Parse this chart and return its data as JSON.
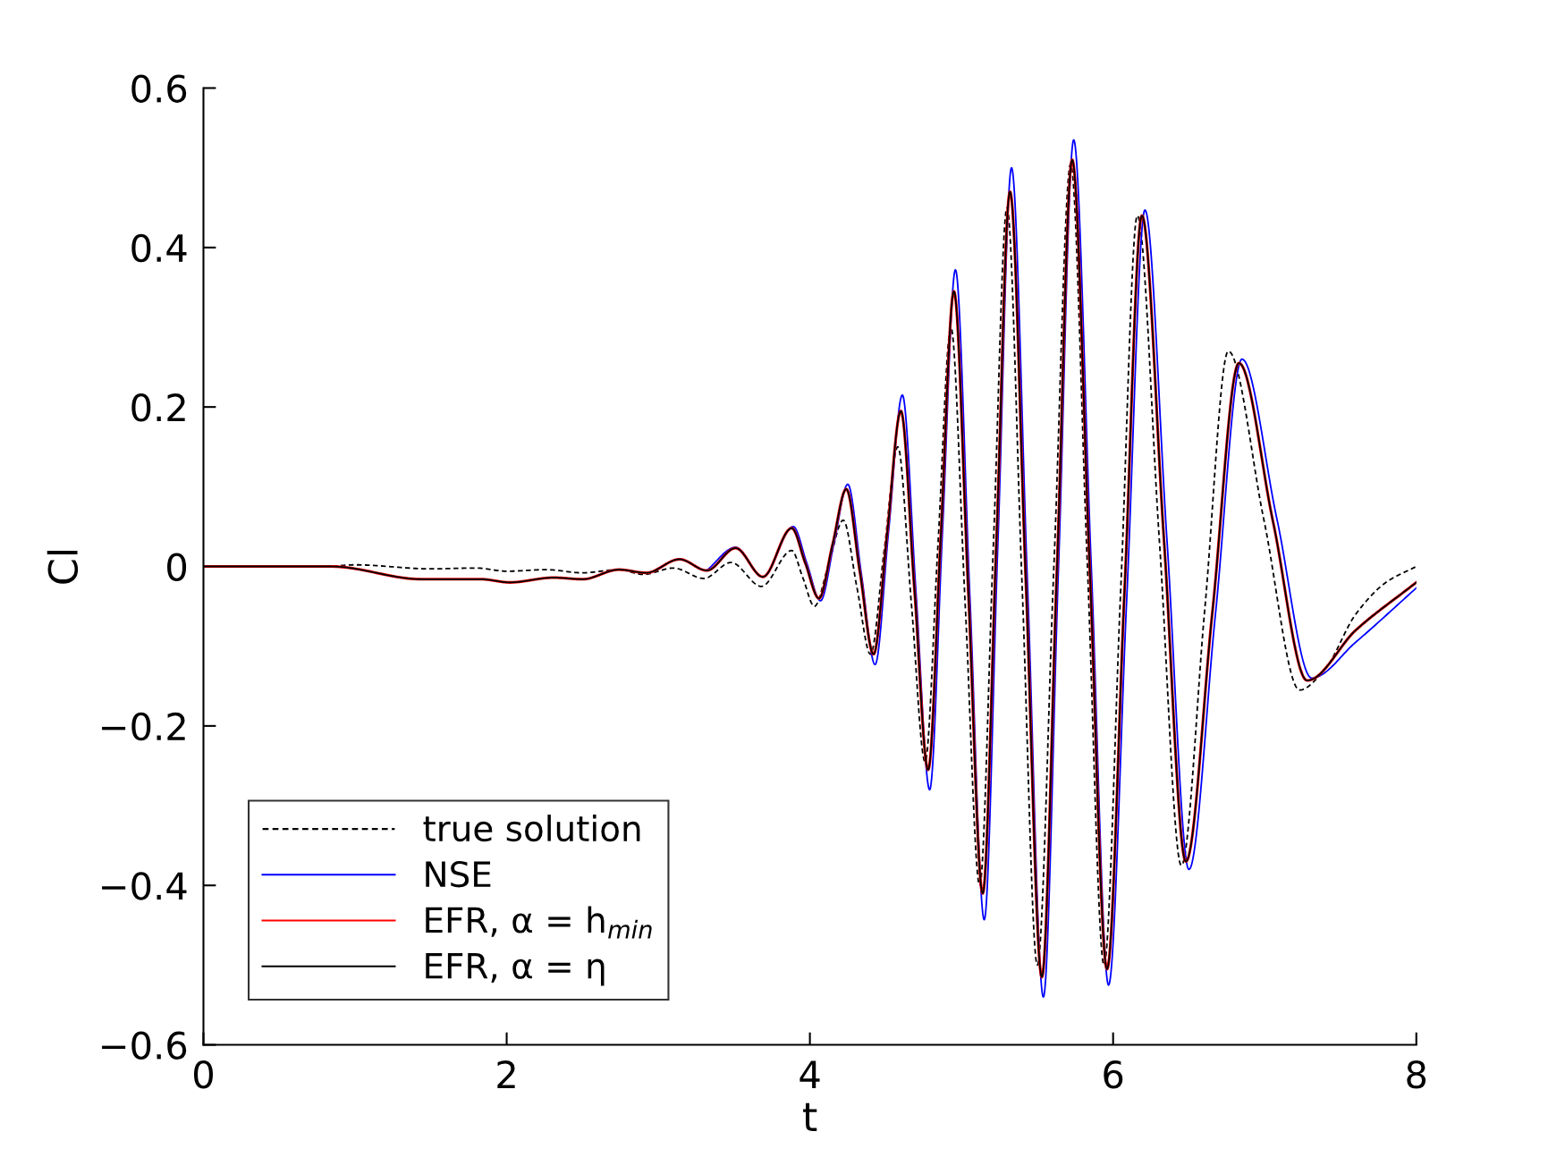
{
  "chart_data": {
    "type": "line",
    "xlabel": "t",
    "ylabel": "Cl",
    "xlim": [
      0,
      8
    ],
    "xticks": [
      0,
      2,
      4,
      6,
      8
    ],
    "ylim": [
      -0.6,
      0.6
    ],
    "yticks": [
      -0.6,
      -0.4,
      -0.2,
      0,
      0.2,
      0.4,
      0.6
    ],
    "grid": false,
    "legend": "bottom left",
    "marker": "none",
    "series": [
      {
        "name": "true solution",
        "color": "#000000",
        "line_style": "dashed",
        "x": [
          0,
          0.8,
          1.0,
          1.5,
          1.8,
          2.0,
          2.26,
          2.5,
          2.74,
          2.9,
          3.1,
          3.3,
          3.48,
          3.68,
          3.88,
          3.955,
          4.03,
          4.125,
          4.22,
          4.31,
          4.4,
          4.49,
          4.58,
          4.67,
          4.76,
          4.845,
          4.93,
          5.025,
          5.12,
          5.21,
          5.3,
          5.4,
          5.5,
          5.61,
          5.72,
          5.83,
          5.94,
          6.05,
          6.16,
          6.305,
          6.45,
          6.605,
          6.76,
          6.995,
          7.23,
          7.4,
          7.6,
          7.8,
          8
        ],
        "values": [
          0,
          0,
          0.002,
          -0.003,
          -0.002,
          -0.006,
          -0.004,
          -0.008,
          -0.004,
          -0.01,
          -0.002,
          -0.015,
          0.005,
          -0.025,
          0.02,
          -0.015,
          -0.05,
          0.004,
          0.058,
          -0.026,
          -0.11,
          0.02,
          0.15,
          -0.048,
          -0.245,
          0.028,
          0.3,
          -0.05,
          -0.4,
          0.025,
          0.45,
          -0.025,
          -0.5,
          0.003,
          0.505,
          0.003,
          -0.5,
          -0.03,
          0.44,
          0.033,
          -0.375,
          -0.053,
          0.27,
          0.058,
          -0.155,
          -0.128,
          -0.06,
          -0.02,
          0
        ]
      },
      {
        "name": "NSE",
        "color": "#0000ff",
        "line_style": "solid",
        "x": [
          3.32,
          3.51,
          3.69,
          3.89,
          3.98,
          4.07,
          4.16,
          4.25,
          4.34,
          4.43,
          4.52,
          4.61,
          4.7,
          4.79,
          4.875,
          4.96,
          5.055,
          5.15,
          5.24,
          5.33,
          5.435,
          5.54,
          5.64,
          5.74,
          5.855,
          5.97,
          6.09,
          6.21,
          6.355,
          6.5,
          6.675,
          6.85,
          7.08,
          7.31,
          7.6,
          8
        ],
        "values": [
          -0.005,
          0.024,
          -0.013,
          0.05,
          0.004,
          -0.043,
          0.03,
          0.103,
          -0.01,
          -0.123,
          0.046,
          0.215,
          -0.033,
          -0.28,
          0.046,
          0.372,
          -0.036,
          -0.443,
          0.029,
          0.5,
          -0.02,
          -0.54,
          0.0,
          0.535,
          0.005,
          -0.525,
          -0.04,
          0.447,
          0.034,
          -0.38,
          -0.06,
          0.26,
          0.06,
          -0.14,
          -0.095,
          -0.027
        ]
      },
      {
        "name": "EFR, α = h$_{min}$",
        "color": "#ff0000",
        "line_style": "solid",
        "x": [
          0,
          0.84,
          1.44,
          1.83,
          2.02,
          2.31,
          2.5,
          2.74,
          2.92,
          3.14,
          3.32,
          3.51,
          3.69,
          3.88,
          3.97,
          4.06,
          4.15,
          4.24,
          4.33,
          4.42,
          4.51,
          4.6,
          4.69,
          4.78,
          4.865,
          4.95,
          5.045,
          5.14,
          5.23,
          5.32,
          5.425,
          5.53,
          5.63,
          5.73,
          5.845,
          5.96,
          6.075,
          6.19,
          6.335,
          6.48,
          6.655,
          6.83,
          7.055,
          7.28,
          7.6,
          8
        ],
        "values": [
          0,
          0,
          -0.016,
          -0.016,
          -0.02,
          -0.014,
          -0.016,
          -0.004,
          -0.008,
          0.009,
          -0.005,
          0.023,
          -0.013,
          0.048,
          0.004,
          -0.04,
          0.028,
          0.097,
          -0.007,
          -0.11,
          0.042,
          0.195,
          -0.03,
          -0.255,
          0.045,
          0.345,
          -0.032,
          -0.41,
          0.03,
          0.47,
          -0.022,
          -0.515,
          0.0,
          0.51,
          0.002,
          -0.505,
          -0.032,
          0.44,
          0.035,
          -0.37,
          -0.057,
          0.255,
          0.056,
          -0.143,
          -0.08,
          -0.02
        ]
      },
      {
        "name": "EFR, α = η",
        "color": "#000000",
        "line_style": "solid",
        "x": [
          0,
          0.84,
          1.44,
          1.83,
          2.02,
          2.31,
          2.5,
          2.74,
          2.92,
          3.14,
          3.32,
          3.51,
          3.69,
          3.88,
          3.97,
          4.06,
          4.15,
          4.24,
          4.33,
          4.42,
          4.51,
          4.6,
          4.69,
          4.78,
          4.865,
          4.95,
          5.045,
          5.14,
          5.23,
          5.32,
          5.425,
          5.53,
          5.63,
          5.73,
          5.845,
          5.96,
          6.075,
          6.19,
          6.335,
          6.48,
          6.655,
          6.83,
          7.055,
          7.28,
          7.6,
          8
        ],
        "values": [
          0,
          0,
          -0.016,
          -0.016,
          -0.02,
          -0.014,
          -0.016,
          -0.004,
          -0.008,
          0.009,
          -0.005,
          0.023,
          -0.013,
          0.048,
          0.004,
          -0.04,
          0.028,
          0.097,
          -0.007,
          -0.11,
          0.042,
          0.195,
          -0.03,
          -0.255,
          0.045,
          0.345,
          -0.032,
          -0.41,
          0.03,
          0.47,
          -0.022,
          -0.515,
          0.0,
          0.51,
          0.002,
          -0.505,
          -0.032,
          0.44,
          0.035,
          -0.37,
          -0.057,
          0.255,
          0.056,
          -0.143,
          -0.08,
          -0.02
        ]
      }
    ]
  }
}
